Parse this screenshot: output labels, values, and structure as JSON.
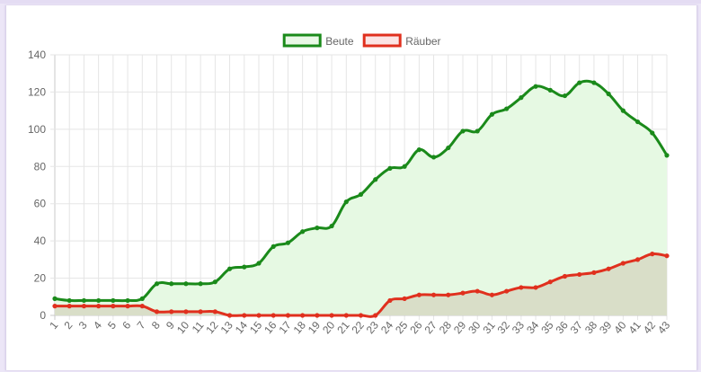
{
  "chart_data": {
    "type": "line",
    "x": [
      1,
      2,
      3,
      4,
      5,
      6,
      7,
      8,
      9,
      10,
      11,
      12,
      13,
      14,
      15,
      16,
      17,
      18,
      19,
      20,
      21,
      22,
      23,
      24,
      25,
      26,
      27,
      28,
      29,
      30,
      31,
      32,
      33,
      34,
      35,
      36,
      37,
      38,
      39,
      40,
      41,
      42,
      43
    ],
    "ylim": [
      0,
      140
    ],
    "yticks": [
      0,
      20,
      40,
      60,
      80,
      100,
      120,
      140
    ],
    "grid": true,
    "legend_position": "top-center",
    "series": [
      {
        "name": "Beute",
        "color": "#1a8a1a",
        "fill": "#e6f9e3",
        "values": [
          9,
          8,
          8,
          8,
          8,
          8,
          9,
          17,
          17,
          17,
          17,
          18,
          25,
          26,
          28,
          37,
          39,
          45,
          47,
          48,
          61,
          65,
          73,
          79,
          80,
          89,
          85,
          90,
          99,
          99,
          108,
          111,
          117,
          123,
          121,
          118,
          125,
          125,
          119,
          110,
          104,
          98,
          86
        ]
      },
      {
        "name": "Räuber",
        "color": "#e0301e",
        "fill": "rgba(190,160,140,0.30)",
        "values": [
          5,
          5,
          5,
          5,
          5,
          5,
          5,
          2,
          2,
          2,
          2,
          2,
          0,
          0,
          0,
          0,
          0,
          0,
          0,
          0,
          0,
          0,
          0,
          8,
          9,
          11,
          11,
          11,
          12,
          13,
          11,
          13,
          15,
          15,
          18,
          21,
          22,
          23,
          25,
          28,
          30,
          33,
          32
        ]
      }
    ]
  }
}
